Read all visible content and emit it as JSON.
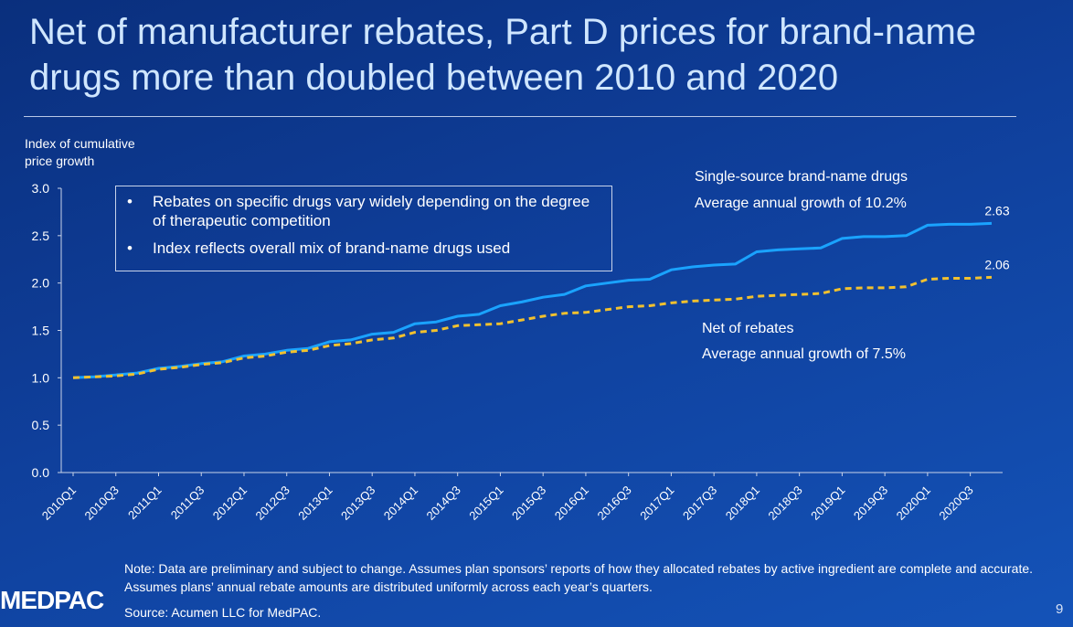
{
  "title": "Net of manufacturer rebates, Part D prices for brand-name drugs more than doubled between 2010 and 2020",
  "ylabel_line1": "Index of cumulative",
  "ylabel_line2": "price growth",
  "bullets": [
    "Rebates on specific drugs vary widely depending on the degree of therapeutic competition",
    "Index reflects overall mix of brand-name drugs used"
  ],
  "series_labels": {
    "single_source": "Single-source brand-name drugs",
    "single_source_growth": "Average annual growth of 10.2%",
    "net": "Net of rebates",
    "net_growth": "Average annual growth of 7.5%"
  },
  "note": "Note:  Data are preliminary and subject to change. Assumes plan sponsors’ reports of how they allocated rebates by active ingredient are complete and accurate. Assumes plans’ annual rebate amounts are distributed uniformly across each year’s quarters.",
  "source": "Source: Acumen LLC for MedPAC.",
  "logo": "MEDPAC",
  "page_number": "9",
  "colors": {
    "single_source": "#1aa3ff",
    "net": "#f2c12e"
  },
  "chart_data": {
    "type": "line",
    "ylim": [
      0,
      3
    ],
    "yticks": [
      "0.0",
      "0.5",
      "1.0",
      "1.5",
      "2.0",
      "2.5",
      "3.0"
    ],
    "ytick_values": [
      0,
      0.5,
      1,
      1.5,
      2,
      2.5,
      3
    ],
    "tick_labels": [
      "2010Q1",
      "2010Q3",
      "2011Q1",
      "2011Q3",
      "2012Q1",
      "2012Q3",
      "2013Q1",
      "2013Q3",
      "2014Q1",
      "2014Q3",
      "2015Q1",
      "2015Q3",
      "2016Q1",
      "2016Q3",
      "2017Q1",
      "2017Q3",
      "2018Q1",
      "2018Q3",
      "2019Q1",
      "2019Q3",
      "2020Q1",
      "2020Q3"
    ],
    "x": [
      "2010Q1",
      "2010Q2",
      "2010Q3",
      "2010Q4",
      "2011Q1",
      "2011Q2",
      "2011Q3",
      "2011Q4",
      "2012Q1",
      "2012Q2",
      "2012Q3",
      "2012Q4",
      "2013Q1",
      "2013Q2",
      "2013Q3",
      "2013Q4",
      "2014Q1",
      "2014Q2",
      "2014Q3",
      "2014Q4",
      "2015Q1",
      "2015Q2",
      "2015Q3",
      "2015Q4",
      "2016Q1",
      "2016Q2",
      "2016Q3",
      "2016Q4",
      "2017Q1",
      "2017Q2",
      "2017Q3",
      "2017Q4",
      "2018Q1",
      "2018Q2",
      "2018Q3",
      "2018Q4",
      "2019Q1",
      "2019Q2",
      "2019Q3",
      "2019Q4",
      "2020Q1",
      "2020Q2",
      "2020Q3",
      "2020Q4"
    ],
    "series": [
      {
        "name": "Single-source brand-name drugs",
        "style": "solid",
        "values": [
          1.0,
          1.01,
          1.03,
          1.05,
          1.1,
          1.12,
          1.15,
          1.17,
          1.23,
          1.25,
          1.29,
          1.31,
          1.38,
          1.4,
          1.46,
          1.48,
          1.57,
          1.59,
          1.65,
          1.67,
          1.76,
          1.8,
          1.85,
          1.88,
          1.97,
          2.0,
          2.03,
          2.04,
          2.14,
          2.17,
          2.19,
          2.2,
          2.33,
          2.35,
          2.36,
          2.37,
          2.47,
          2.49,
          2.49,
          2.5,
          2.61,
          2.62,
          2.62,
          2.63
        ],
        "end_label": "2.63"
      },
      {
        "name": "Net of rebates",
        "style": "dashed",
        "values": [
          1.0,
          1.01,
          1.02,
          1.04,
          1.09,
          1.11,
          1.14,
          1.16,
          1.21,
          1.23,
          1.27,
          1.29,
          1.34,
          1.36,
          1.4,
          1.42,
          1.48,
          1.5,
          1.55,
          1.56,
          1.57,
          1.61,
          1.65,
          1.68,
          1.69,
          1.72,
          1.75,
          1.76,
          1.79,
          1.81,
          1.82,
          1.83,
          1.86,
          1.87,
          1.88,
          1.89,
          1.94,
          1.95,
          1.95,
          1.96,
          2.04,
          2.05,
          2.05,
          2.06
        ],
        "end_label": "2.06"
      }
    ]
  }
}
